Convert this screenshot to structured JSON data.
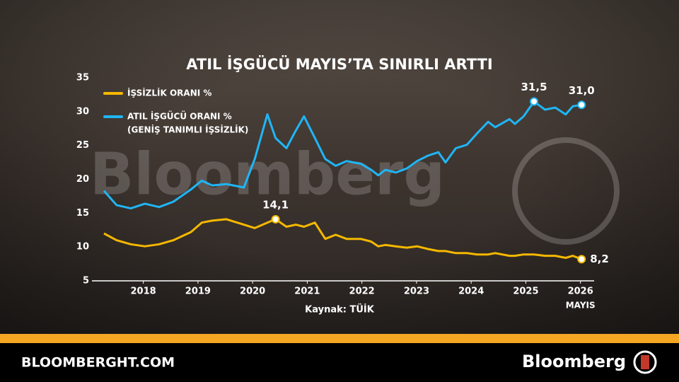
{
  "chart_data": {
    "type": "line",
    "title": "ATIL İŞGÜCÜ MAYIS’TA SINIRLI ARTTI",
    "watermark": "Bloomberg",
    "x": [
      2017.28,
      2017.51,
      2017.77,
      2018.03,
      2018.29,
      2018.55,
      2018.87,
      2019.07,
      2019.26,
      2019.52,
      2019.84,
      2020.04,
      2020.27,
      2020.42,
      2020.62,
      2020.79,
      2020.94,
      2021.14,
      2021.33,
      2021.52,
      2021.72,
      2021.98,
      2022.17,
      2022.3,
      2022.43,
      2022.62,
      2022.82,
      2023.01,
      2023.21,
      2023.4,
      2023.53,
      2023.72,
      2023.92,
      2024.11,
      2024.31,
      2024.44,
      2024.7,
      2024.8,
      2024.96,
      2025.15,
      2025.35,
      2025.54,
      2025.73,
      2025.86,
      2026.02
    ],
    "series": [
      {
        "name": "İŞSİZLİK ORANI %",
        "color": "#f5b800",
        "values": [
          12.0,
          11.0,
          10.4,
          10.1,
          10.4,
          11.0,
          12.2,
          13.6,
          13.9,
          14.1,
          13.3,
          12.8,
          13.6,
          14.1,
          13.0,
          13.3,
          13.0,
          13.6,
          11.2,
          11.8,
          11.2,
          11.2,
          10.8,
          10.1,
          10.3,
          10.1,
          9.9,
          10.1,
          9.7,
          9.4,
          9.4,
          9.1,
          9.1,
          8.9,
          8.9,
          9.1,
          8.7,
          8.7,
          8.9,
          8.9,
          8.7,
          8.7,
          8.4,
          8.7,
          8.2
        ],
        "value_labels": [
          null,
          null,
          null,
          null,
          null,
          null,
          null,
          null,
          null,
          null,
          null,
          null,
          null,
          "14,1",
          null,
          null,
          null,
          null,
          null,
          null,
          null,
          null,
          null,
          null,
          null,
          null,
          null,
          null,
          null,
          null,
          null,
          null,
          null,
          null,
          null,
          null,
          null,
          null,
          null,
          null,
          null,
          null,
          null,
          null,
          "8,2"
        ]
      },
      {
        "name": "ATIL İŞGÜCÜ ORANI %",
        "note": "(GENİŞ TANIMLI İŞSİZLİK)",
        "color": "#1fb6f5",
        "values": [
          18.3,
          16.2,
          15.7,
          16.4,
          15.9,
          16.7,
          18.5,
          19.8,
          19.1,
          19.3,
          18.8,
          23.0,
          29.6,
          26.1,
          24.6,
          27.2,
          29.3,
          26.1,
          23.0,
          22.0,
          22.7,
          22.3,
          21.4,
          20.6,
          21.4,
          21.0,
          21.6,
          22.7,
          23.5,
          24.0,
          22.5,
          24.6,
          25.1,
          26.8,
          28.5,
          27.7,
          28.9,
          28.2,
          29.3,
          31.5,
          30.3,
          30.6,
          29.6,
          30.8,
          31.0
        ],
        "value_labels": [
          null,
          null,
          null,
          null,
          null,
          null,
          null,
          null,
          null,
          null,
          null,
          null,
          null,
          null,
          null,
          null,
          null,
          null,
          null,
          null,
          null,
          null,
          null,
          null,
          null,
          null,
          null,
          null,
          null,
          null,
          null,
          null,
          null,
          null,
          null,
          null,
          null,
          null,
          null,
          "31,5",
          null,
          null,
          null,
          null,
          "31,0"
        ]
      }
    ],
    "xlim": [
      2017.06,
      2026.25
    ],
    "xticks": [
      2018,
      2019,
      2020,
      2021,
      2022,
      2023,
      2024,
      2025,
      2026
    ],
    "x_last_note": "MAYIS",
    "ylim": [
      5,
      35
    ],
    "yticks": [
      5,
      10,
      15,
      20,
      25,
      30,
      35
    ],
    "grid": false,
    "source": "Kaynak: TÜİK"
  },
  "footer": {
    "site": "BLOOMBERGHT.COM",
    "brand": "Bloomberg"
  }
}
